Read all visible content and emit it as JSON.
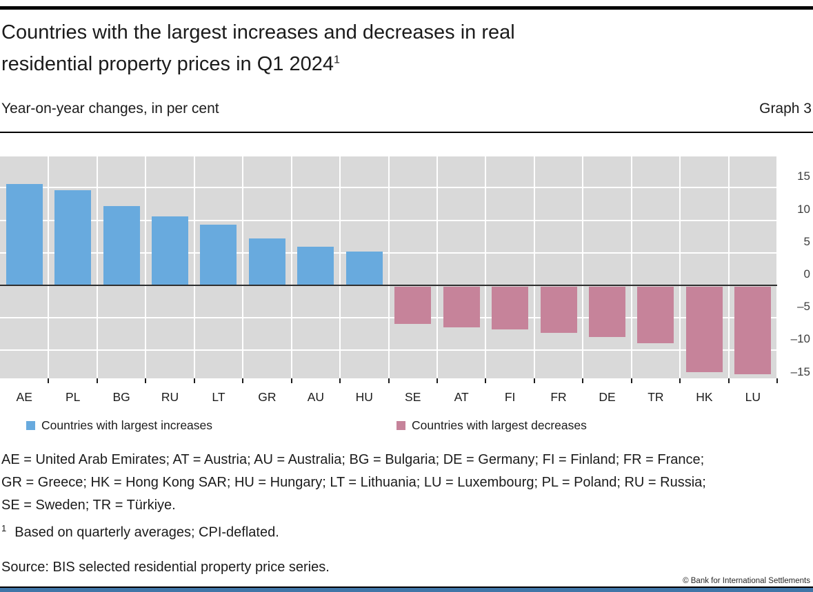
{
  "header": {
    "title_line1": "Countries with the largest increases and decreases in real",
    "title_line2": "residential property prices in Q1 2024",
    "title_footnote_marker": "1",
    "subtitle": "Year-on-year changes, in per cent",
    "graph_label": "Graph 3"
  },
  "chart_data": {
    "type": "bar",
    "title": "Countries with the largest increases and decreases in real residential property prices in Q1 2024",
    "subtitle": "Year-on-year changes, in per cent",
    "categories": [
      "AE",
      "PL",
      "BG",
      "RU",
      "LT",
      "GR",
      "AU",
      "HU",
      "SE",
      "AT",
      "FI",
      "FR",
      "DE",
      "TR",
      "HK",
      "LU"
    ],
    "values": [
      15.6,
      14.6,
      12.2,
      10.6,
      9.3,
      7.2,
      5.9,
      5.2,
      -5.9,
      -6.5,
      -6.8,
      -7.3,
      -8.0,
      -8.9,
      -13.3,
      -13.7
    ],
    "yticks": [
      15,
      10,
      5,
      0,
      -5,
      -10,
      -15
    ],
    "ylim": [
      -14.3,
      19.8
    ],
    "grid": true,
    "plot_background": "#d9d9d9",
    "gridline_color": "#ffffff",
    "zero_line_color": "#2e2e2e",
    "positive_color": "#68aade",
    "negative_color": "#c6839a",
    "legend_position": "bottom",
    "legend": [
      {
        "label": "Countries with largest increases",
        "color": "#68aade"
      },
      {
        "label": "Countries with largest decreases",
        "color": "#c6839a"
      }
    ]
  },
  "footer": {
    "definitions": [
      "AE = United Arab Emirates; AT = Austria; AU = Australia; BG = Bulgaria; DE = Germany; FI = Finland; FR = France;",
      "GR = Greece; HK = Hong Kong SAR; HU = Hungary; LT = Lithuania; LU = Luxembourg; PL = Poland; RU = Russia;",
      "SE = Sweden; TR = Türkiye."
    ],
    "footnote_marker": "1",
    "footnote_text": "Based on quarterly averages; CPI-deflated.",
    "source": "Source: BIS selected residential property price series.",
    "copyright": "© Bank for International Settlements"
  }
}
